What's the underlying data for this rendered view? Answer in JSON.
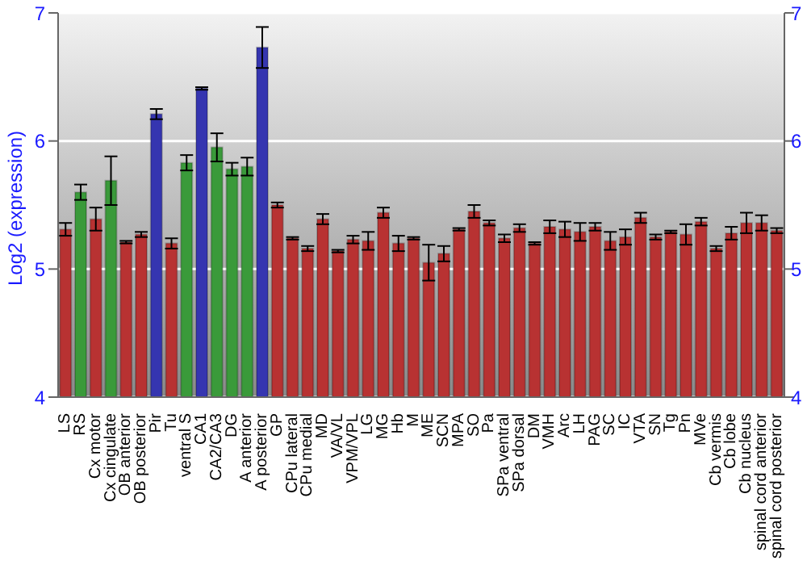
{
  "chart_data": {
    "type": "bar",
    "ylabel": "Log2 (expression)",
    "categories": [
      "LS",
      "RS",
      "Cx motor",
      "Cx cingulate",
      "OB anterior",
      "OB posterior",
      "Pir",
      "Tu",
      "ventral S",
      "CA1",
      "CA2/CA3",
      "DG",
      "A anterior",
      "A posterior",
      "GP",
      "CPu lateral",
      "CPu medial",
      "MD",
      "VA/VL",
      "VPM/VPL",
      "LG",
      "MG",
      "Hb",
      "M",
      "ME",
      "SCN",
      "MPA",
      "SO",
      "Pa",
      "SPa ventral",
      "SPa dorsal",
      "DM",
      "VMH",
      "Arc",
      "LH",
      "PAG",
      "SC",
      "IC",
      "VTA",
      "SN",
      "Tg",
      "Pn",
      "MVe",
      "Cb vermis",
      "Cb lobe",
      "Cb nucleus",
      "spinal cord anterior",
      "spinal cord posterior"
    ],
    "values": [
      5.31,
      5.6,
      5.39,
      5.69,
      5.21,
      5.27,
      6.21,
      5.2,
      5.83,
      6.41,
      5.95,
      5.78,
      5.8,
      6.73,
      5.5,
      5.24,
      5.16,
      5.39,
      5.14,
      5.23,
      5.22,
      5.44,
      5.2,
      5.24,
      5.05,
      5.12,
      5.31,
      5.45,
      5.36,
      5.24,
      5.32,
      5.2,
      5.33,
      5.31,
      5.29,
      5.33,
      5.22,
      5.25,
      5.4,
      5.25,
      5.29,
      5.27,
      5.37,
      5.16,
      5.28,
      5.36,
      5.36,
      5.3
    ],
    "errors": [
      0.05,
      0.06,
      0.09,
      0.19,
      0.01,
      0.02,
      0.04,
      0.04,
      0.06,
      0.01,
      0.11,
      0.05,
      0.07,
      0.16,
      0.02,
      0.01,
      0.02,
      0.04,
      0.01,
      0.03,
      0.07,
      0.04,
      0.06,
      0.01,
      0.14,
      0.06,
      0.01,
      0.05,
      0.02,
      0.03,
      0.03,
      0.01,
      0.05,
      0.06,
      0.07,
      0.03,
      0.07,
      0.06,
      0.04,
      0.02,
      0.01,
      0.08,
      0.03,
      0.02,
      0.05,
      0.08,
      0.06,
      0.02
    ],
    "colors": [
      "#b83232",
      "#3a9a3a",
      "#b83232",
      "#3a9a3a",
      "#b83232",
      "#b83232",
      "#3535b0",
      "#b83232",
      "#3a9a3a",
      "#3535b0",
      "#3a9a3a",
      "#3a9a3a",
      "#3a9a3a",
      "#3535b0",
      "#b83232",
      "#b83232",
      "#b83232",
      "#b83232",
      "#b83232",
      "#b83232",
      "#b83232",
      "#b83232",
      "#b83232",
      "#b83232",
      "#b83232",
      "#b83232",
      "#b83232",
      "#b83232",
      "#b83232",
      "#b83232",
      "#b83232",
      "#b83232",
      "#b83232",
      "#b83232",
      "#b83232",
      "#b83232",
      "#b83232",
      "#b83232",
      "#b83232",
      "#b83232",
      "#b83232",
      "#b83232",
      "#b83232",
      "#b83232",
      "#b83232",
      "#b83232",
      "#b83232",
      "#b83232"
    ],
    "ylim": [
      4,
      7
    ],
    "yticks": [
      4,
      5,
      6,
      7
    ],
    "y2lim": [
      4,
      7
    ],
    "y2ticks": [
      4,
      5,
      6,
      7
    ],
    "grid": "y",
    "legend": false
  }
}
